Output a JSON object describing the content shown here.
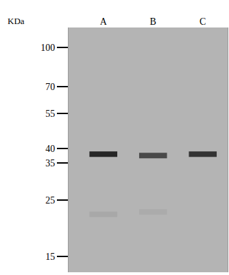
{
  "chart_data": {
    "type": "western_blot",
    "y_label": "KDa",
    "categories": [
      "A",
      "B",
      "C"
    ],
    "log": "y",
    "ylim": [
      13,
      120
    ],
    "yticks": [
      100,
      70,
      55,
      40,
      35,
      25,
      15
    ],
    "bands": [
      {
        "lane": "A",
        "kda": 38,
        "intensity": 1
      },
      {
        "lane": "B",
        "kda": 37.5,
        "intensity": 0.75
      },
      {
        "lane": "C",
        "kda": 38,
        "intensity": 0.9
      },
      {
        "lane": "A",
        "kda": 22,
        "intensity": 0.08
      },
      {
        "lane": "B",
        "kda": 22.5,
        "intensity": 0.06
      }
    ],
    "color": "#262626",
    "grid": false
  }
}
